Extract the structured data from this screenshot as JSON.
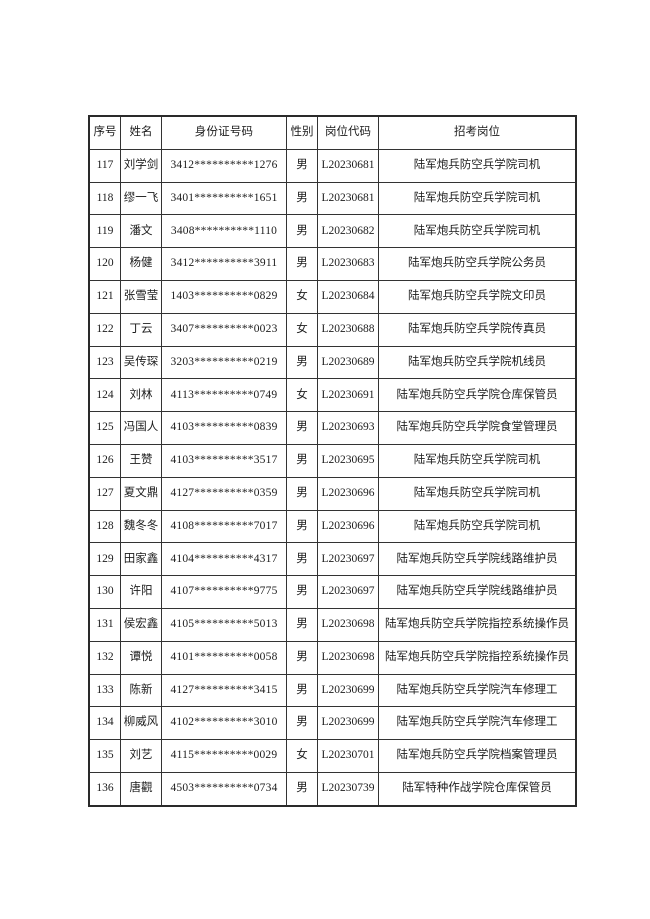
{
  "page": {
    "background_color": "#ffffff",
    "border_color": "#2a2a2a",
    "text_color": "#1c1c1c"
  },
  "table": {
    "headers": [
      "序号",
      "姓名",
      "身份证号码",
      "性别",
      "岗位代码",
      "招考岗位"
    ],
    "rows": [
      {
        "no": "117",
        "name": "刘学剑",
        "id": "3412**********1276",
        "gender": "男",
        "code": "L20230681",
        "position": "陆军炮兵防空兵学院司机"
      },
      {
        "no": "118",
        "name": "缪一飞",
        "id": "3401**********1651",
        "gender": "男",
        "code": "L20230681",
        "position": "陆军炮兵防空兵学院司机"
      },
      {
        "no": "119",
        "name": "潘文",
        "id": "3408**********1110",
        "gender": "男",
        "code": "L20230682",
        "position": "陆军炮兵防空兵学院司机"
      },
      {
        "no": "120",
        "name": "杨健",
        "id": "3412**********3911",
        "gender": "男",
        "code": "L20230683",
        "position": "陆军炮兵防空兵学院公务员"
      },
      {
        "no": "121",
        "name": "张雪莹",
        "id": "1403**********0829",
        "gender": "女",
        "code": "L20230684",
        "position": "陆军炮兵防空兵学院文印员"
      },
      {
        "no": "122",
        "name": "丁云",
        "id": "3407**********0023",
        "gender": "女",
        "code": "L20230688",
        "position": "陆军炮兵防空兵学院传真员"
      },
      {
        "no": "123",
        "name": "吴传琛",
        "id": "3203**********0219",
        "gender": "男",
        "code": "L20230689",
        "position": "陆军炮兵防空兵学院机线员"
      },
      {
        "no": "124",
        "name": "刘林",
        "id": "4113**********0749",
        "gender": "女",
        "code": "L20230691",
        "position": "陆军炮兵防空兵学院仓库保管员"
      },
      {
        "no": "125",
        "name": "冯国人",
        "id": "4103**********0839",
        "gender": "男",
        "code": "L20230693",
        "position": "陆军炮兵防空兵学院食堂管理员"
      },
      {
        "no": "126",
        "name": "王赞",
        "id": "4103**********3517",
        "gender": "男",
        "code": "L20230695",
        "position": "陆军炮兵防空兵学院司机"
      },
      {
        "no": "127",
        "name": "夏文鼎",
        "id": "4127**********0359",
        "gender": "男",
        "code": "L20230696",
        "position": "陆军炮兵防空兵学院司机"
      },
      {
        "no": "128",
        "name": "魏冬冬",
        "id": "4108**********7017",
        "gender": "男",
        "code": "L20230696",
        "position": "陆军炮兵防空兵学院司机"
      },
      {
        "no": "129",
        "name": "田家鑫",
        "id": "4104**********4317",
        "gender": "男",
        "code": "L20230697",
        "position": "陆军炮兵防空兵学院线路维护员"
      },
      {
        "no": "130",
        "name": "许阳",
        "id": "4107**********9775",
        "gender": "男",
        "code": "L20230697",
        "position": "陆军炮兵防空兵学院线路维护员"
      },
      {
        "no": "131",
        "name": "侯宏鑫",
        "id": "4105**********5013",
        "gender": "男",
        "code": "L20230698",
        "position": "陆军炮兵防空兵学院指控系统操作员"
      },
      {
        "no": "132",
        "name": "谭悦",
        "id": "4101**********0058",
        "gender": "男",
        "code": "L20230698",
        "position": "陆军炮兵防空兵学院指控系统操作员"
      },
      {
        "no": "133",
        "name": "陈新",
        "id": "4127**********3415",
        "gender": "男",
        "code": "L20230699",
        "position": "陆军炮兵防空兵学院汽车修理工"
      },
      {
        "no": "134",
        "name": "柳威风",
        "id": "4102**********3010",
        "gender": "男",
        "code": "L20230699",
        "position": "陆军炮兵防空兵学院汽车修理工"
      },
      {
        "no": "135",
        "name": "刘艺",
        "id": "4115**********0029",
        "gender": "女",
        "code": "L20230701",
        "position": "陆军炮兵防空兵学院档案管理员"
      },
      {
        "no": "136",
        "name": "唐觀",
        "id": "4503**********0734",
        "gender": "男",
        "code": "L20230739",
        "position": "陆军特种作战学院仓库保管员"
      }
    ]
  }
}
